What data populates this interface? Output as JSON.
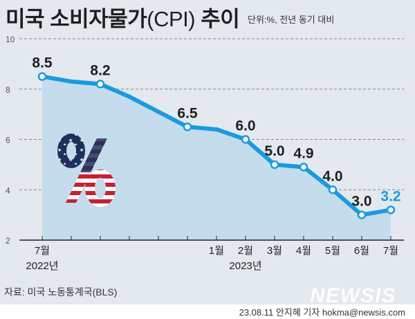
{
  "header": {
    "title_main": "미국 소비자물가",
    "title_cpi": "(CPI)",
    "title_trend": " 추이",
    "unit": "단위:%, 전년 동기 대비"
  },
  "footer": {
    "source": "자료: 미국 노동통계국(BLS)",
    "logo": "NEWSIS",
    "credit": "23.08.11 안지혜 기자 hokma@newsis.com"
  },
  "colors": {
    "background": "#e3e9ee",
    "area_fill": "#c5dcec",
    "line": "#1a9ae0",
    "marker_fill": "#ffffff",
    "highlight_label": "#1a9ae0",
    "label": "#1f1f1f",
    "grid": "#888888"
  },
  "chart_data": {
    "type": "area",
    "title": "미국 소비자물가(CPI) 추이",
    "subtitle": "단위:%, 전년 동기 대비",
    "xlabel": "",
    "ylabel": "",
    "ylim": [
      2,
      10
    ],
    "yticks": [
      2,
      4,
      6,
      8,
      10
    ],
    "grid": true,
    "x": [
      "2022-07",
      "2022-08",
      "2022-09",
      "2022-10",
      "2022-11",
      "2022-12",
      "2023-01",
      "2023-02",
      "2023-03",
      "2023-04",
      "2023-05",
      "2023-06",
      "2023-07"
    ],
    "x_tick_labels": [
      "7월",
      "",
      "",
      "",
      "",
      "",
      "1월",
      "2월",
      "3월",
      "4월",
      "5월",
      "6월",
      "7월"
    ],
    "year_labels": [
      {
        "index": 0,
        "label": "2022년"
      },
      {
        "index": 7,
        "label": "2023년"
      }
    ],
    "values": [
      8.5,
      8.3,
      8.2,
      7.7,
      7.1,
      6.5,
      6.4,
      6.0,
      5.0,
      4.9,
      4.0,
      3.0,
      3.2
    ],
    "marked_points": [
      {
        "index": 0,
        "label": "8.5"
      },
      {
        "index": 2,
        "label": "8.2"
      },
      {
        "index": 5,
        "label": "6.5"
      },
      {
        "index": 7,
        "label": "6.0"
      },
      {
        "index": 8,
        "label": "5.0"
      },
      {
        "index": 9,
        "label": "4.9"
      },
      {
        "index": 10,
        "label": "4.0"
      },
      {
        "index": 11,
        "label": "3.0"
      },
      {
        "index": 12,
        "label": "3.2",
        "highlight": true
      }
    ],
    "decoration": "percent-sign-us-flag"
  }
}
